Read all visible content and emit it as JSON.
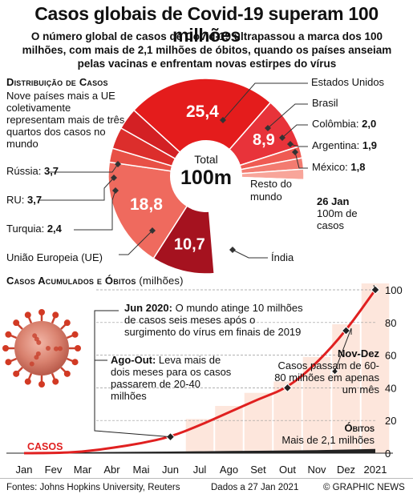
{
  "header": {
    "title": "Casos globais de Covid-19 superam 100 milhões",
    "subtitle": "O número global de casos de Covid-19 ultrapassou a marca dos 100 milhões, com mais de 2,1 milhões de óbitos, quando os países anseiam pelas vacinas e enfrentam novas estirpes do vírus"
  },
  "distribution": {
    "heading": "Distribuição de Casos",
    "note": "Nove países mais a UE coletivamente representam mais de três quartos dos casos no mundo",
    "center_top": "Total",
    "center_value": "100m",
    "labels": {
      "eua": "Estados Unidos",
      "brasil": "Brasil",
      "colombia_name": "Colômbia: ",
      "colombia_value": "2,0",
      "argentina_name": "Argentina: ",
      "argentina_value": "1,9",
      "mexico_name": "México: ",
      "mexico_value": "1,8",
      "russia_name": "Rússia: ",
      "russia_value": "3,7",
      "ru_name": "RU: ",
      "ru_value": "3,7",
      "turquia_name": "Turquia: ",
      "turquia_value": "2,4",
      "ue": "União Europeia (UE)",
      "india": "Índia",
      "resto": "Resto do mundo"
    }
  },
  "chart_data": [
    {
      "type": "pie",
      "title": "Distribuição de Casos",
      "unit": "milhões",
      "slices": [
        {
          "label": "Estados Unidos",
          "value": 25.4,
          "display": "25,4",
          "color": "#e41c1c"
        },
        {
          "label": "Brasil",
          "value": 8.9,
          "display": "8,9",
          "color": "#e8333a"
        },
        {
          "label": "Colômbia",
          "value": 2.0,
          "display": "2,0",
          "color": "#ef5a52"
        },
        {
          "label": "Argentina",
          "value": 1.9,
          "display": "1,9",
          "color": "#f37b70"
        },
        {
          "label": "México",
          "value": 1.8,
          "display": "1,8",
          "color": "#f8a59a"
        },
        {
          "label": "Resto do mundo",
          "value": 23.8,
          "display": "",
          "color": "#ffffff"
        },
        {
          "label": "Índia",
          "value": 10.7,
          "display": "10,7",
          "color": "#a5121f"
        },
        {
          "label": "União Europeia (UE)",
          "value": 18.8,
          "display": "18,8",
          "color": "#ef6a5e"
        },
        {
          "label": "Turquia",
          "value": 2.4,
          "display": "2,4",
          "color": "#e85046"
        },
        {
          "label": "RU",
          "value": 3.7,
          "display": "3,7",
          "color": "#dc2e2c"
        },
        {
          "label": "Rússia",
          "value": 3.7,
          "display": "3,7",
          "color": "#d32024"
        }
      ]
    },
    {
      "type": "area",
      "title": "Casos Acumulados e Óbitos",
      "title_unit": "(milhões)",
      "categories": [
        "Jan",
        "Fev",
        "Mar",
        "Abr",
        "Mai",
        "Jun",
        "Jul",
        "Ago",
        "Set",
        "Out",
        "Nov",
        "Dez",
        "2021"
      ],
      "ylim": [
        0,
        100
      ],
      "yticks": [
        0,
        20,
        40,
        60,
        80,
        100
      ],
      "series": [
        {
          "name": "Casos",
          "color": "#e02020",
          "values": [
            0.01,
            0.08,
            0.8,
            3.2,
            6.0,
            10.0,
            17.0,
            25.0,
            33.0,
            40.0,
            55.0,
            75.0,
            100.0
          ]
        },
        {
          "name": "Óbitos",
          "color": "#111111",
          "values": [
            0.0,
            0.003,
            0.04,
            0.23,
            0.37,
            0.5,
            0.67,
            0.85,
            1.0,
            1.15,
            1.35,
            1.7,
            2.1
          ]
        }
      ],
      "series_label": "CASOS",
      "annotations": {
        "jun_bold": "Jun 2020:",
        "jun_text": " O mundo atinge 10 milhões de casos seis meses após o surgimento do vírus em finais de 2019",
        "ago_bold": "Ago-Out:",
        "ago_text": " Leva mais de dois meses para os casos passarem de 20-40 milhões",
        "jan_bold": "26 Jan",
        "jan_text": "100m de casos",
        "nov_bold": "Nov-Dez",
        "nov_text": "Casos passam de 60-80 milhões em apenas um mês",
        "obitos_bold": "Óbitos",
        "obitos_text": "Mais de 2,1 milhões"
      }
    }
  ],
  "colors": {
    "accent": "#e02020",
    "light_band": "#fde6dc"
  },
  "footer": {
    "sources": "Fontes: Johns Hopkins University, Reuters",
    "date": "Dados a 27 Jan 2021",
    "brand": "© GRAPHIC NEWS"
  }
}
